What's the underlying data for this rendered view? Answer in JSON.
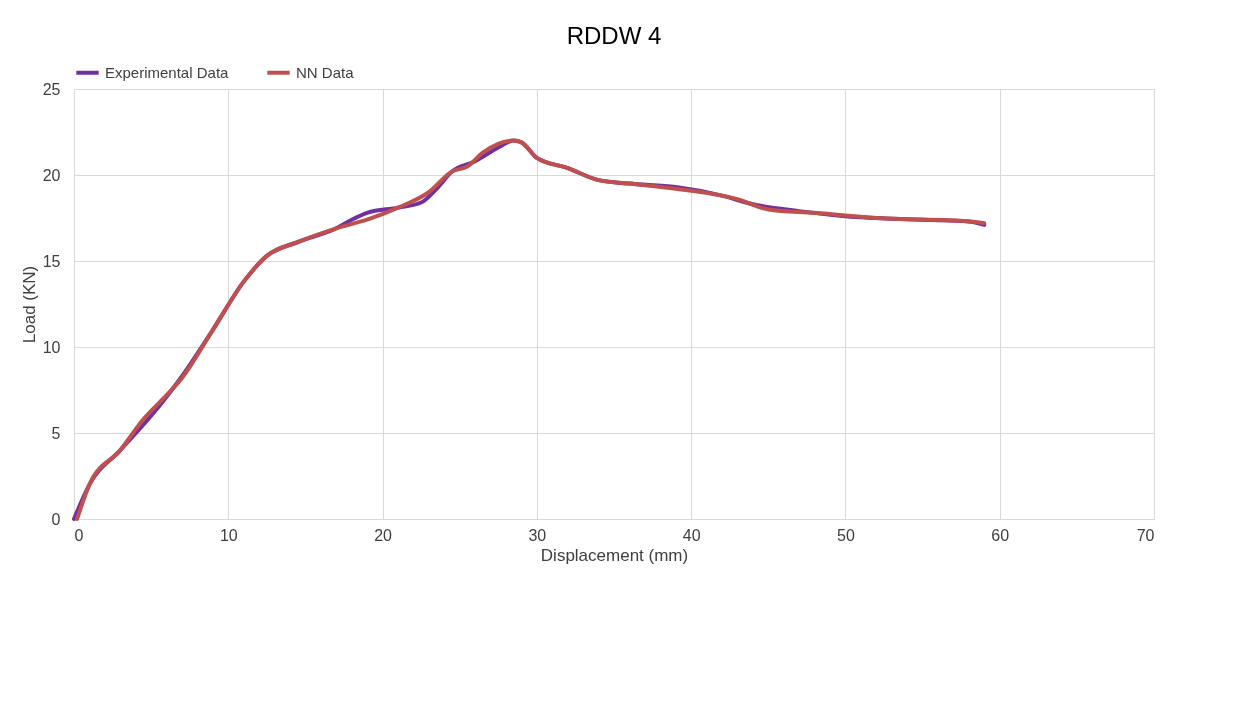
{
  "chart_data": {
    "type": "line",
    "title": "RDDW 4",
    "xlabel": "Displacement (mm)",
    "ylabel": "Load (KN)",
    "xlim": [
      0,
      70
    ],
    "xticks": [
      0,
      10,
      20,
      30,
      40,
      50,
      60,
      70
    ],
    "ylim": [
      0,
      25
    ],
    "yticks": [
      0,
      5,
      10,
      15,
      20,
      25
    ],
    "grid": true,
    "legend": "top",
    "line_style": "solid",
    "marker": "none",
    "series": [
      {
        "name": "Experimental Data",
        "color": "#7030a0",
        "x": [
          0,
          1,
          3,
          5,
          7,
          9,
          11,
          12.5,
          14.5,
          17,
          18,
          19,
          21,
          22.5,
          23.5,
          24.5,
          26,
          27.5,
          28.5,
          29,
          30,
          32,
          34,
          36,
          39,
          42,
          44,
          47,
          50,
          55,
          58,
          59
        ],
        "values": [
          0,
          2,
          4,
          6,
          8.3,
          11,
          13.8,
          15.3,
          16.1,
          16.9,
          17.4,
          17.8,
          18.1,
          18.4,
          19.2,
          20.2,
          20.8,
          21.6,
          22,
          21.9,
          21,
          20.4,
          19.7,
          19.5,
          19.3,
          18.8,
          18.3,
          17.9,
          17.6,
          17.4,
          17.3,
          17.1
        ]
      },
      {
        "name": "NN Data",
        "color": "#c0504d",
        "x": [
          0.2,
          1,
          3,
          4.5,
          6,
          7,
          9,
          11,
          12.5,
          14.5,
          17,
          19,
          21,
          23,
          24.5,
          25.5,
          26.5,
          28.5,
          29,
          30,
          32,
          34,
          36,
          39,
          42,
          43,
          45,
          48,
          52,
          58,
          59
        ],
        "values": [
          0,
          2,
          4,
          5.8,
          7.2,
          8.2,
          11,
          13.8,
          15.3,
          16.1,
          16.9,
          17.4,
          18.1,
          19,
          20.2,
          20.5,
          21.3,
          22,
          21.9,
          21,
          20.4,
          19.7,
          19.5,
          19.2,
          18.8,
          18.6,
          18,
          17.8,
          17.5,
          17.3,
          17.2
        ]
      }
    ]
  }
}
